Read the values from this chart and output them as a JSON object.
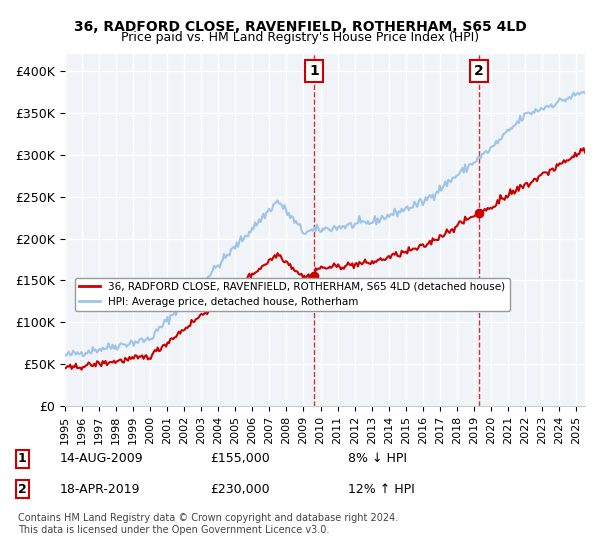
{
  "title": "36, RADFORD CLOSE, RAVENFIELD, ROTHERHAM, S65 4LD",
  "subtitle": "Price paid vs. HM Land Registry's House Price Index (HPI)",
  "ylabel_ticks": [
    "£0",
    "£50K",
    "£100K",
    "£150K",
    "£200K",
    "£250K",
    "£300K",
    "£350K",
    "£400K"
  ],
  "ytick_values": [
    0,
    50000,
    100000,
    150000,
    200000,
    250000,
    300000,
    350000,
    400000
  ],
  "ylim": [
    0,
    420000
  ],
  "xlim_start": 1995.0,
  "xlim_end": 2025.5,
  "purchase1_x": 2009.617,
  "purchase1_y": 155000,
  "purchase1_label": "1",
  "purchase2_x": 2019.292,
  "purchase2_y": 230000,
  "purchase2_label": "2",
  "hpi_color": "#a0c4e8",
  "price_color": "#cc0000",
  "marker_color": "#cc0000",
  "vline_color": "#cc0000",
  "bg_color": "#f0f4f8",
  "plot_bg": "#f0f4f8",
  "grid_color": "#ffffff",
  "legend_label_price": "36, RADFORD CLOSE, RAVENFIELD, ROTHERHAM, S65 4LD (detached house)",
  "legend_label_hpi": "HPI: Average price, detached house, Rotherham",
  "note1_num": "1",
  "note1_date": "14-AUG-2009",
  "note1_price": "£155,000",
  "note1_hpi": "8% ↓ HPI",
  "note2_num": "2",
  "note2_date": "18-APR-2019",
  "note2_price": "£230,000",
  "note2_hpi": "12% ↑ HPI",
  "footer": "Contains HM Land Registry data © Crown copyright and database right 2024.\nThis data is licensed under the Open Government Licence v3.0."
}
